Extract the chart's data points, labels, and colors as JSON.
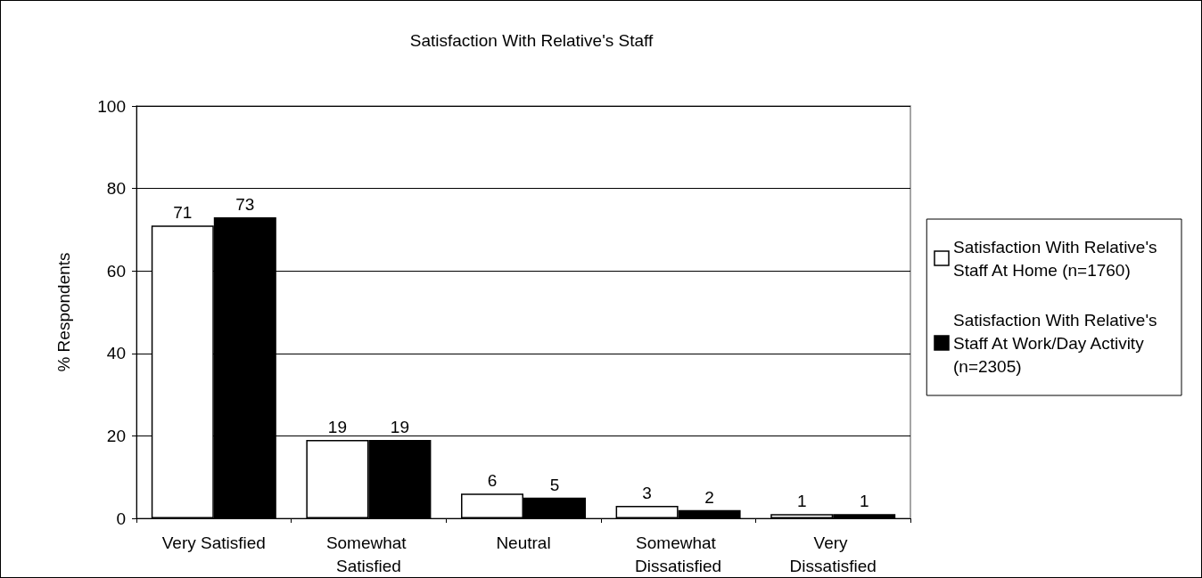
{
  "chart_data": {
    "type": "bar",
    "title": "Satisfaction With Relative's Staff",
    "ylabel": "% Respondents",
    "categories": [
      "Very Satisfied",
      "Somewhat Satisfied",
      "Neutral",
      "Somewhat Dissatisfied",
      "Very Dissatisfied"
    ],
    "series": [
      {
        "name": "Satisfaction With Relative's Staff At Home (n=1760)",
        "color": "#ffffff",
        "values": [
          71,
          19,
          6,
          3,
          1
        ]
      },
      {
        "name": "Satisfaction With Relative's Staff At Work/Day Activity (n=2305)",
        "color": "#000000",
        "values": [
          73,
          19,
          5,
          2,
          1
        ]
      }
    ],
    "ylim": [
      0,
      100
    ],
    "yticks": [
      0,
      20,
      40,
      60,
      80,
      100
    ],
    "grid": "y",
    "legend": "right",
    "data_labels": true
  }
}
